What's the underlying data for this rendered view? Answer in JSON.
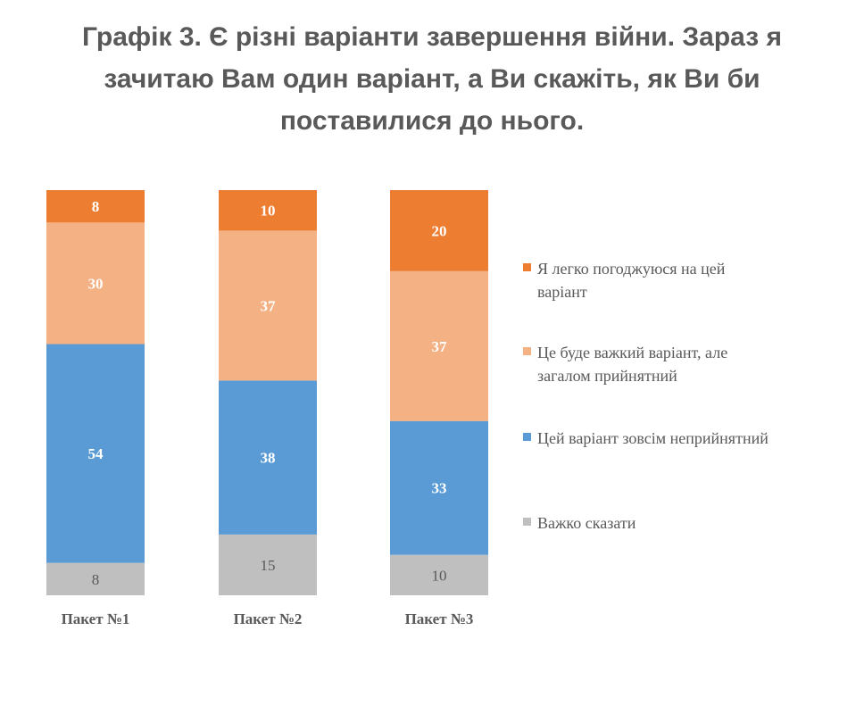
{
  "title_lines": [
    "Графік 3. Є різні варіанти завершення війни. Зараз я",
    "зачитаю Вам один варіант, а Ви скажіть, як Ви би",
    "поставилися до нього."
  ],
  "colors": {
    "easily_agree": "#ED7D31",
    "hard_but_acceptable": "#F4B183",
    "unacceptable": "#5B9BD5",
    "hard_to_say": "#BFBFBF",
    "text": "#595959"
  },
  "legend": {
    "items": [
      {
        "label_lines": [
          "Я легко погоджуюся на цей",
          "варіант"
        ],
        "color": "#ED7D31"
      },
      {
        "label_lines": [
          "Це буде важкий варіант, але",
          "загалом прийнятний"
        ],
        "color": "#F4B183"
      },
      {
        "label_lines": [
          "Цей варіант зовсім неприйнятний"
        ],
        "color": "#5B9BD5"
      },
      {
        "label_lines": [
          "Важко сказати"
        ],
        "color": "#BFBFBF"
      }
    ]
  },
  "chart_data": {
    "type": "bar",
    "stacked": true,
    "orientation": "vertical",
    "total": 100,
    "categories": [
      "Пакет №1",
      "Пакет №2",
      "Пакет №3"
    ],
    "series": [
      {
        "name": "Важко сказати",
        "values": [
          8,
          15,
          10
        ],
        "color": "#BFBFBF",
        "label_color": "#595959",
        "label_bold": false
      },
      {
        "name": "Цей варіант зовсім неприйнятний",
        "values": [
          54,
          38,
          33
        ],
        "color": "#5B9BD5",
        "label_color": "#FFFFFF",
        "label_bold": true
      },
      {
        "name": "Це буде важкий варіант, але загалом прийнятний",
        "values": [
          30,
          37,
          37
        ],
        "color": "#F4B183",
        "label_color": "#FFFFFF",
        "label_bold": true
      },
      {
        "name": "Я легко погоджуюся на цей варіант",
        "values": [
          8,
          10,
          20
        ],
        "color": "#ED7D31",
        "label_color": "#FFFFFF",
        "label_bold": true
      }
    ],
    "legend_position": "right",
    "grid": false
  }
}
